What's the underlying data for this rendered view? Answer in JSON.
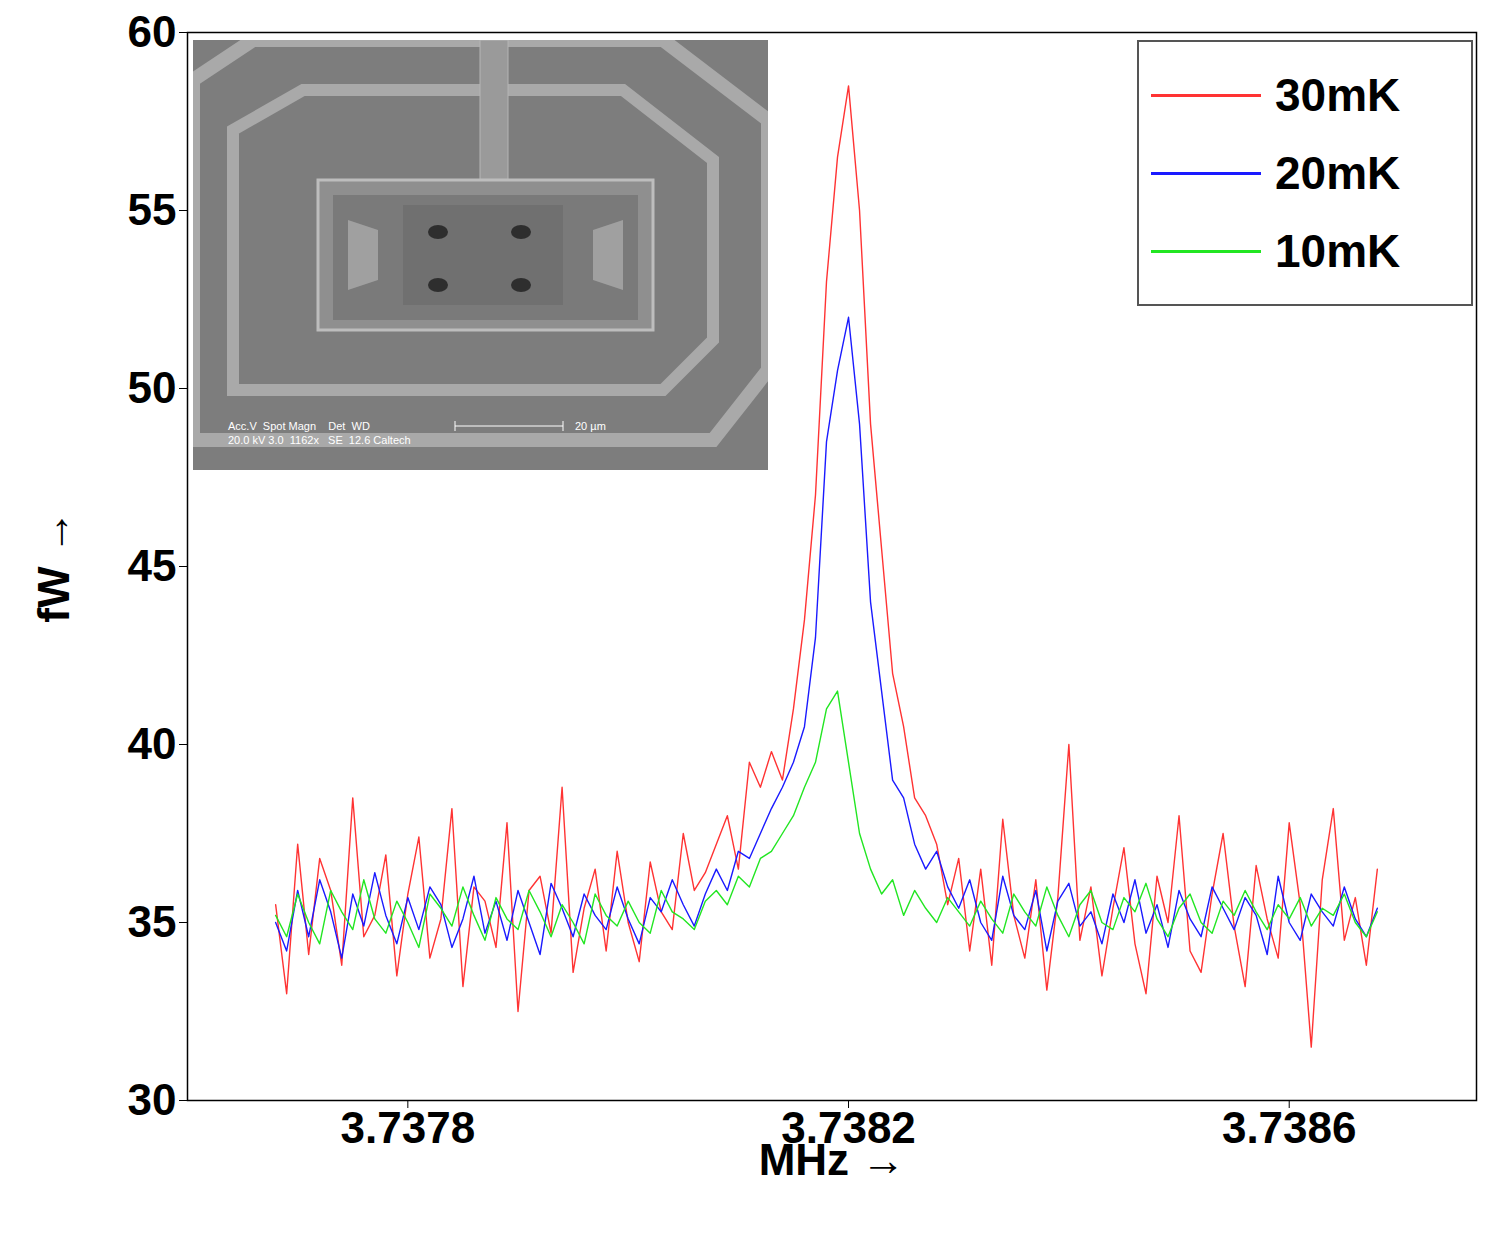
{
  "chart_data": {
    "type": "line",
    "xlabel": "MHz",
    "ylabel": "fW",
    "xlim": [
      3.7376,
      3.73877
    ],
    "xticks": [
      3.7378,
      3.7382,
      3.7386
    ],
    "ylim": [
      30,
      60
    ],
    "yticks": [
      30,
      35,
      40,
      45,
      50,
      55,
      60
    ],
    "legend": "upper right",
    "x": [
      3.73768,
      3.73769,
      3.7377,
      3.73771,
      3.73772,
      3.73773,
      3.73774,
      3.73775,
      3.73776,
      3.73777,
      3.73778,
      3.73779,
      3.7378,
      3.73781,
      3.73782,
      3.73783,
      3.73784,
      3.73785,
      3.73786,
      3.73787,
      3.73788,
      3.73789,
      3.7379,
      3.73791,
      3.73792,
      3.73793,
      3.73794,
      3.73795,
      3.73796,
      3.73797,
      3.73798,
      3.73799,
      3.738,
      3.73801,
      3.73802,
      3.73803,
      3.73804,
      3.73805,
      3.73806,
      3.73807,
      3.73808,
      3.73809,
      3.7381,
      3.73811,
      3.73812,
      3.73813,
      3.73814,
      3.73815,
      3.73816,
      3.73817,
      3.73818,
      3.73819,
      3.7382,
      3.73821,
      3.73822,
      3.73823,
      3.73824,
      3.73825,
      3.73826,
      3.73827,
      3.73828,
      3.73829,
      3.7383,
      3.73831,
      3.73832,
      3.73833,
      3.73834,
      3.73835,
      3.73836,
      3.73837,
      3.73838,
      3.73839,
      3.7384,
      3.73841,
      3.73842,
      3.73843,
      3.73844,
      3.73845,
      3.73846,
      3.73847,
      3.73848,
      3.73849,
      3.7385,
      3.73851,
      3.73852,
      3.73853,
      3.73854,
      3.73855,
      3.73856,
      3.73857,
      3.73858,
      3.73859,
      3.7386,
      3.73861,
      3.73862,
      3.73863,
      3.73864,
      3.73865,
      3.73866,
      3.73867,
      3.73868
    ],
    "series": [
      {
        "name": "30mK",
        "color": "#ff3333",
        "values": [
          35.5,
          33.0,
          37.2,
          34.1,
          36.8,
          35.9,
          33.8,
          38.5,
          34.6,
          35.2,
          36.9,
          33.5,
          35.8,
          37.4,
          34.0,
          35.1,
          38.2,
          33.2,
          36.0,
          35.6,
          34.3,
          37.8,
          32.5,
          35.9,
          36.3,
          34.7,
          38.8,
          33.6,
          35.4,
          36.5,
          34.2,
          37.0,
          35.0,
          33.9,
          36.7,
          35.3,
          34.8,
          37.5,
          35.9,
          36.4,
          37.2,
          38.0,
          36.5,
          39.5,
          38.8,
          39.8,
          39.0,
          41.0,
          43.5,
          47.0,
          53.0,
          56.5,
          58.5,
          55.0,
          49.0,
          45.5,
          42.0,
          40.5,
          38.5,
          38.0,
          37.2,
          35.5,
          36.8,
          34.2,
          36.5,
          33.8,
          37.9,
          35.2,
          34.0,
          36.2,
          33.1,
          35.7,
          40.0,
          34.5,
          36.0,
          33.5,
          35.4,
          37.1,
          34.4,
          33.0,
          36.3,
          35.0,
          38.0,
          34.2,
          33.6,
          35.8,
          37.5,
          34.9,
          33.2,
          36.6,
          35.1,
          34.0,
          37.8,
          35.5,
          31.5,
          36.2,
          38.2,
          34.5,
          35.7,
          33.8,
          36.5
        ]
      },
      {
        "name": "20mK",
        "color": "#1a1aff",
        "values": [
          35.0,
          34.2,
          35.9,
          34.6,
          36.2,
          35.3,
          34.0,
          35.8,
          34.9,
          36.4,
          35.2,
          34.4,
          35.7,
          34.8,
          36.0,
          35.5,
          34.3,
          35.1,
          36.3,
          34.7,
          35.6,
          34.5,
          35.9,
          35.0,
          34.1,
          36.1,
          35.4,
          34.6,
          35.8,
          35.2,
          34.8,
          36.0,
          35.1,
          34.4,
          35.7,
          35.3,
          36.2,
          35.5,
          34.9,
          35.8,
          36.5,
          35.9,
          37.0,
          36.8,
          37.5,
          38.2,
          38.8,
          39.5,
          40.5,
          43.0,
          48.5,
          50.5,
          52.0,
          49.0,
          44.0,
          41.5,
          39.0,
          38.5,
          37.2,
          36.5,
          37.0,
          36.0,
          35.4,
          36.2,
          35.0,
          34.5,
          36.3,
          35.2,
          34.8,
          35.9,
          34.2,
          35.6,
          36.1,
          34.9,
          35.3,
          34.4,
          35.8,
          35.0,
          36.2,
          34.7,
          35.5,
          34.3,
          35.9,
          35.1,
          34.6,
          36.0,
          35.4,
          34.8,
          35.7,
          35.2,
          34.1,
          36.3,
          35.0,
          34.5,
          35.8,
          35.3,
          34.9,
          36.0,
          35.1,
          34.6,
          35.4
        ]
      },
      {
        "name": "10mK",
        "color": "#22e622",
        "values": [
          35.2,
          34.6,
          35.8,
          35.0,
          34.4,
          35.9,
          35.3,
          34.8,
          36.2,
          35.1,
          34.7,
          35.6,
          35.0,
          34.3,
          35.8,
          35.4,
          34.9,
          36.0,
          35.2,
          34.5,
          35.7,
          35.1,
          34.8,
          35.9,
          35.3,
          34.6,
          35.5,
          35.0,
          34.4,
          35.8,
          35.2,
          34.9,
          35.6,
          35.0,
          34.7,
          35.9,
          35.3,
          35.1,
          34.8,
          35.6,
          35.9,
          35.5,
          36.3,
          36.0,
          36.8,
          37.0,
          37.5,
          38.0,
          38.8,
          39.5,
          41.0,
          41.5,
          39.5,
          37.5,
          36.5,
          35.8,
          36.2,
          35.2,
          35.9,
          35.4,
          35.0,
          35.7,
          35.3,
          34.9,
          35.6,
          35.1,
          34.7,
          35.8,
          35.3,
          34.9,
          36.0,
          35.2,
          34.6,
          35.5,
          35.9,
          35.0,
          34.8,
          35.7,
          35.3,
          36.1,
          35.1,
          34.6,
          35.4,
          35.8,
          35.0,
          34.7,
          35.6,
          35.2,
          35.9,
          35.3,
          34.8,
          35.5,
          35.1,
          35.7,
          34.9,
          35.4,
          35.2,
          35.8,
          35.0,
          34.6,
          35.3
        ]
      }
    ],
    "inset": {
      "text_lines": [
        "Acc.V  Spot Magn    Det  WD",
        "20.0 kV 3.0  1162x   SE  12.6 Caltech"
      ],
      "scale_bar": "20 µm"
    }
  }
}
